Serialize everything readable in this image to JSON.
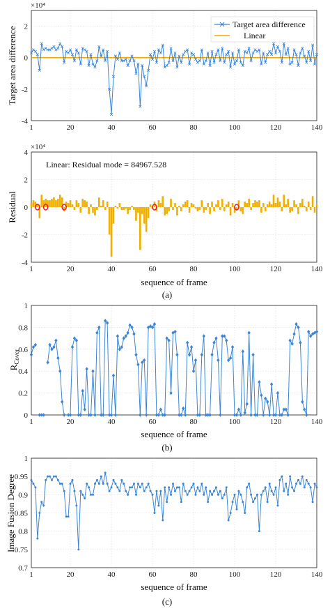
{
  "chart_data": [
    {
      "type": "line",
      "panel": "a-top",
      "ylabel": "Target area difference",
      "y_exponent": "×10⁴",
      "xlim": [
        1,
        140
      ],
      "ylim": [
        -4,
        3
      ],
      "xticks": [
        1,
        20,
        40,
        60,
        80,
        100,
        120,
        140
      ],
      "yticks": [
        -4,
        -2,
        0,
        2
      ],
      "legend_position": "top-right",
      "series": [
        {
          "name": "Target area difference",
          "color": "#3b85d6",
          "marker": "x",
          "x": [
            1,
            2,
            3,
            4,
            5,
            6,
            7,
            8,
            9,
            10,
            11,
            12,
            13,
            14,
            15,
            16,
            17,
            18,
            19,
            20,
            21,
            22,
            23,
            24,
            25,
            26,
            27,
            28,
            29,
            30,
            31,
            32,
            33,
            34,
            35,
            36,
            37,
            38,
            39,
            40,
            41,
            42,
            43,
            44,
            45,
            46,
            47,
            48,
            49,
            50,
            51,
            52,
            53,
            54,
            55,
            56,
            57,
            58,
            59,
            60,
            61,
            62,
            63,
            64,
            65,
            66,
            67,
            68,
            69,
            70,
            71,
            72,
            73,
            74,
            75,
            76,
            77,
            78,
            79,
            80,
            81,
            82,
            83,
            84,
            85,
            86,
            87,
            88,
            89,
            90,
            91,
            92,
            93,
            94,
            95,
            96,
            97,
            98,
            99,
            100,
            101,
            102,
            103,
            104,
            105,
            106,
            107,
            108,
            109,
            110,
            111,
            112,
            113,
            114,
            115,
            116,
            117,
            118,
            119,
            120,
            121,
            122,
            123,
            124,
            125,
            126,
            127,
            128,
            129,
            130,
            131,
            132,
            133,
            134,
            135,
            136,
            137,
            138,
            139,
            140
          ],
          "y": [
            0.3,
            0.5,
            0.4,
            0.2,
            -0.8,
            0.9,
            0.5,
            0.6,
            0.5,
            0.5,
            0.6,
            0.7,
            0.5,
            0.6,
            0.9,
            0.7,
            -0.3,
            0.4,
            0.3,
            0.5,
            0.2,
            -0.2,
            0.5,
            0.3,
            -0.4,
            0.6,
            0.5,
            0.4,
            -0.5,
            0.2,
            -0.4,
            -0.6,
            -0.2,
            0.7,
            0.1,
            0.5,
            -0.2,
            0.4,
            -2.0,
            -3.6,
            -1.2,
            0.1,
            -0.1,
            0.3,
            -0.2,
            -0.2,
            -0.1,
            -0.5,
            -0.2,
            0.1,
            -0.2,
            -1.0,
            -0.4,
            -3.1,
            -0.5,
            -1.2,
            -1.8,
            -0.8,
            0.2,
            -0.1,
            0.4,
            -0.3,
            0.5,
            0.3,
            0.8,
            -0.6,
            -0.5,
            -0.3,
            0.6,
            -0.2,
            0.3,
            -0.6,
            0.1,
            -0.3,
            0.2,
            0.4,
            0.5,
            -0.4,
            0.3,
            0.2,
            -0.1,
            -0.3,
            -0.2,
            0.5,
            -0.4,
            -0.2,
            0.3,
            -0.5,
            0.4,
            -0.3,
            0.2,
            0.5,
            -0.2,
            0.6,
            -0.3,
            0.2,
            0.4,
            -0.6,
            0.3,
            -0.4,
            -0.2,
            0.5,
            -0.3,
            -0.5,
            0.4,
            0.3,
            0.6,
            -0.2,
            0.3,
            0.5,
            0.4,
            0.5,
            -0.4,
            0.3,
            -0.3,
            0.2,
            0.4,
            0.2,
            0.9,
            0.3,
            0.7,
            0.4,
            -0.3,
            0.9,
            0.2,
            0.6,
            -0.4,
            -0.3,
            0.5,
            0.2,
            -0.5,
            0.3,
            0.6,
            0.1,
            -0.3,
            0.4,
            -0.2,
            0.8,
            -0.4,
            0.2
          ]
        },
        {
          "name": "Linear",
          "color": "#f0a800",
          "x": [
            1,
            140
          ],
          "y": [
            0,
            0
          ]
        }
      ]
    },
    {
      "type": "bar",
      "panel": "a-bottom",
      "annotation": "Linear: Residual mode = 84967.528",
      "xlabel": "sequence of frame",
      "ylabel": "Residual",
      "y_exponent": "×10⁴",
      "caption": "(a)",
      "xlim": [
        1,
        140
      ],
      "ylim": [
        -4,
        4
      ],
      "xticks": [
        1,
        20,
        40,
        60,
        80,
        100,
        120,
        140
      ],
      "yticks": [
        -4,
        -2,
        0,
        2,
        4
      ],
      "bar_color": "#f0b000",
      "marker_color": "#e8202a",
      "marked_x": [
        4,
        8,
        17,
        61,
        101
      ]
    },
    {
      "type": "line",
      "panel": "b",
      "xlabel": "sequence of frame",
      "ylabel": "R",
      "ylabel_sub": "Cover",
      "caption": "(b)",
      "color": "#3b85d6",
      "marker": "diamond",
      "xlim": [
        1,
        140
      ],
      "ylim": [
        0,
        1
      ],
      "xticks": [
        1,
        20,
        40,
        60,
        80,
        100,
        120,
        140
      ],
      "yticks": [
        0,
        0.2,
        0.4,
        0.6,
        0.8,
        1
      ],
      "x": [
        1,
        2,
        3,
        4,
        5,
        6,
        7,
        8,
        9,
        10,
        11,
        12,
        13,
        14,
        15,
        16,
        17,
        18,
        19,
        20,
        21,
        22,
        23,
        24,
        25,
        26,
        27,
        28,
        29,
        30,
        31,
        32,
        33,
        34,
        35,
        36,
        37,
        38,
        39,
        40,
        41,
        42,
        43,
        44,
        45,
        46,
        47,
        48,
        49,
        50,
        51,
        52,
        53,
        54,
        55,
        56,
        57,
        58,
        59,
        60,
        61,
        62,
        63,
        64,
        65,
        66,
        67,
        68,
        69,
        70,
        71,
        72,
        73,
        74,
        75,
        76,
        77,
        78,
        79,
        80,
        81,
        82,
        83,
        84,
        85,
        86,
        87,
        88,
        89,
        90,
        91,
        92,
        93,
        94,
        95,
        96,
        97,
        98,
        99,
        100,
        101,
        102,
        103,
        104,
        105,
        106,
        107,
        108,
        109,
        110,
        111,
        112,
        113,
        114,
        115,
        116,
        117,
        118,
        119,
        120,
        121,
        122,
        123,
        124,
        125,
        126,
        127,
        128,
        129,
        130,
        131,
        132,
        133,
        134,
        135,
        136,
        137,
        138,
        139,
        140
      ],
      "y": [
        0.55,
        0.62,
        0.64,
        null,
        0.0,
        0.0,
        0.0,
        null,
        0.48,
        0.64,
        0.6,
        0.62,
        0.68,
        0.52,
        0.4,
        0.12,
        0.0,
        null,
        0.0,
        0.0,
        0.62,
        0.7,
        0.68,
        0.0,
        0.0,
        0.22,
        0.05,
        0.42,
        0.0,
        0.0,
        0.4,
        0.0,
        0.75,
        0.8,
        0.0,
        0.0,
        0.86,
        0.84,
        0.0,
        0.0,
        0.36,
        0.0,
        0.72,
        0.6,
        0.62,
        0.7,
        0.72,
        0.75,
        0.82,
        0.8,
        0.74,
        0.55,
        0.46,
        0.0,
        0.48,
        0.5,
        0.0,
        0.8,
        0.81,
        0.8,
        0.83,
        0.0,
        0.0,
        0.05,
        0.0,
        0.0,
        0.7,
        0.68,
        0.2,
        0.75,
        0.76,
        0.55,
        0.0,
        0.0,
        0.06,
        0.0,
        0.66,
        0.55,
        0.62,
        0.4,
        0.5,
        0.0,
        0.0,
        0.55,
        0.72,
        0.0,
        0.0,
        0.0,
        0.55,
        0.66,
        0.7,
        0.5,
        0.0,
        0.72,
        0.72,
        0.68,
        0.5,
        0.52,
        0.62,
        0.0,
        0.0,
        0.05,
        0.0,
        0.58,
        0.02,
        0.1,
        0.75,
        0.0,
        0.55,
        0.0,
        0.0,
        0.3,
        0.18,
        0.0,
        0.15,
        0.12,
        0.0,
        0.28,
        0.0,
        0.0,
        0.2,
        0.0,
        0.0,
        0.05,
        0.05,
        0.0,
        0.68,
        0.65,
        0.74,
        0.83,
        0.8,
        0.66,
        0.12,
        0.05,
        0.0,
        0.76,
        0.72,
        0.74,
        0.75,
        0.76
      ]
    },
    {
      "type": "line",
      "panel": "c",
      "xlabel": "sequence of frame",
      "ylabel": "Image Fusion Degree",
      "caption": "(c)",
      "color": "#3b85d6",
      "marker": "dot",
      "xlim": [
        1,
        140
      ],
      "ylim": [
        0.7,
        1
      ],
      "xticks": [
        1,
        20,
        40,
        60,
        80,
        100,
        120,
        140
      ],
      "yticks": [
        0.7,
        0.75,
        0.8,
        0.85,
        0.9,
        0.95,
        1
      ],
      "x": [
        1,
        2,
        3,
        4,
        5,
        6,
        7,
        8,
        9,
        10,
        11,
        12,
        13,
        14,
        15,
        16,
        17,
        18,
        19,
        20,
        21,
        22,
        23,
        24,
        25,
        26,
        27,
        28,
        29,
        30,
        31,
        32,
        33,
        34,
        35,
        36,
        37,
        38,
        39,
        40,
        41,
        42,
        43,
        44,
        45,
        46,
        47,
        48,
        49,
        50,
        51,
        52,
        53,
        54,
        55,
        56,
        57,
        58,
        59,
        60,
        61,
        62,
        63,
        64,
        65,
        66,
        67,
        68,
        69,
        70,
        71,
        72,
        73,
        74,
        75,
        76,
        77,
        78,
        79,
        80,
        81,
        82,
        83,
        84,
        85,
        86,
        87,
        88,
        89,
        90,
        91,
        92,
        93,
        94,
        95,
        96,
        97,
        98,
        99,
        100,
        101,
        102,
        103,
        104,
        105,
        106,
        107,
        108,
        109,
        110,
        111,
        112,
        113,
        114,
        115,
        116,
        117,
        118,
        119,
        120,
        121,
        122,
        123,
        124,
        125,
        126,
        127,
        128,
        129,
        130,
        131,
        132,
        133,
        134,
        135,
        136,
        137,
        138,
        139,
        140
      ],
      "y": [
        0.94,
        0.93,
        0.92,
        0.78,
        0.85,
        0.88,
        0.87,
        0.94,
        0.95,
        0.95,
        0.94,
        0.95,
        0.95,
        0.94,
        0.93,
        0.93,
        0.91,
        0.84,
        0.84,
        0.93,
        0.94,
        0.91,
        0.87,
        0.75,
        0.91,
        0.9,
        0.89,
        0.93,
        0.92,
        0.9,
        0.9,
        0.93,
        0.94,
        0.93,
        0.95,
        0.93,
        0.96,
        0.93,
        0.91,
        0.92,
        0.94,
        0.93,
        0.92,
        0.91,
        0.94,
        0.93,
        0.91,
        0.9,
        0.92,
        0.92,
        0.93,
        0.9,
        0.93,
        0.92,
        0.93,
        0.91,
        0.92,
        0.93,
        0.91,
        0.9,
        0.85,
        0.91,
        0.87,
        0.91,
        0.83,
        0.92,
        0.88,
        0.92,
        0.9,
        0.93,
        0.91,
        0.92,
        0.92,
        0.88,
        0.93,
        0.91,
        0.9,
        0.91,
        0.92,
        0.93,
        0.9,
        0.92,
        0.91,
        0.93,
        0.9,
        0.92,
        0.88,
        0.91,
        0.9,
        0.91,
        0.92,
        0.9,
        0.91,
        0.89,
        0.9,
        0.92,
        0.83,
        0.85,
        0.88,
        0.9,
        0.86,
        0.91,
        0.9,
        0.88,
        0.85,
        0.92,
        0.93,
        0.9,
        0.88,
        0.89,
        0.9,
        0.8,
        0.9,
        0.91,
        0.92,
        0.88,
        0.93,
        0.91,
        0.9,
        0.92,
        0.87,
        0.94,
        0.95,
        0.91,
        0.93,
        0.9,
        0.95,
        0.92,
        0.91,
        0.93,
        0.94,
        0.93,
        0.95,
        0.92,
        0.94,
        0.93,
        0.92,
        0.88,
        0.93,
        0.92
      ]
    }
  ]
}
